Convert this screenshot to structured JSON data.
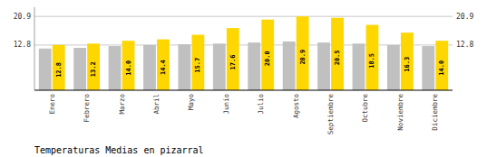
{
  "chart_data": {
    "type": "bar",
    "title": "Temperaturas Medias en pizarral",
    "categories": [
      "Enero",
      "Febrero",
      "Marzo",
      "Abril",
      "Mayo",
      "Junio",
      "Julio",
      "Agosto",
      "Septiembre",
      "Octubre",
      "Noviembre",
      "Diciembre"
    ],
    "series": [
      {
        "color": "#C0C0C0",
        "values": [
          11.8,
          12.0,
          12.5,
          12.8,
          13.0,
          13.2,
          13.5,
          13.8,
          13.5,
          13.2,
          12.8,
          12.5
        ]
      },
      {
        "color": "#FFD700",
        "values": [
          12.8,
          13.2,
          14.0,
          14.4,
          15.7,
          17.6,
          20.0,
          20.9,
          20.5,
          18.5,
          16.3,
          14.0
        ],
        "data_labels": true,
        "value_labels": [
          "12.8",
          "13.2",
          "14.0",
          "14.4",
          "15.7",
          "17.6",
          "20.0",
          "20.9",
          "20.5",
          "18.5",
          "16.3",
          "14.0"
        ]
      }
    ],
    "ylim": [
      0,
      23.5
    ],
    "yticks": [
      12.8,
      20.9
    ],
    "y2lim": [
      0,
      23.5
    ],
    "y2ticks": [
      12.8,
      20.9
    ],
    "grid": true
  }
}
